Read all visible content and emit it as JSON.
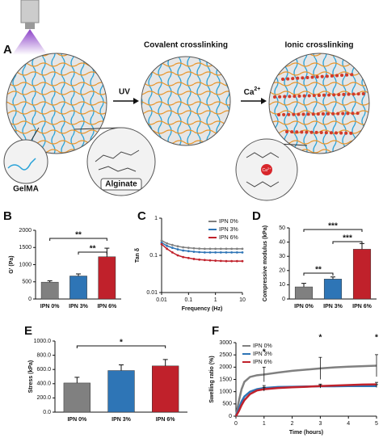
{
  "panel_a": {
    "label": "A",
    "title_covalent": "Covalent crosslinking",
    "title_ionic": "Ionic crosslinking",
    "uv": "UV",
    "ion": "Ca",
    "ion_charge": "2+",
    "gelma": "GelMA",
    "alginate": "Alginate"
  },
  "chart_data": [
    {
      "type": "bar",
      "panel_label": "B",
      "ylabel": "G' (Pa)",
      "categories": [
        "IPN 0%",
        "IPN 3%",
        "IPN 6%"
      ],
      "values": [
        490,
        670,
        1230
      ],
      "errors": [
        40,
        60,
        250
      ],
      "colors": [
        "#808080",
        "#2e75b6",
        "#c0212b"
      ],
      "ylim": [
        0,
        2000
      ],
      "yticks": [
        0,
        500,
        1000,
        1500,
        2000
      ],
      "annotations": [
        "**",
        "**"
      ]
    },
    {
      "type": "line",
      "panel_label": "C",
      "xlabel": "Frequency (Hz)",
      "ylabel": "Tan δ",
      "xscale": "log",
      "yscale": "log",
      "xlim": [
        0.01,
        10
      ],
      "xticks": [
        0.01,
        0.1,
        1,
        10
      ],
      "ylim": [
        0.01,
        1
      ],
      "yticks": [
        0.01,
        0.1,
        1
      ],
      "legend": "upper right",
      "x": [
        0.01,
        0.0158,
        0.0251,
        0.0398,
        0.0631,
        0.1,
        0.158,
        0.251,
        0.398,
        0.631,
        1,
        1.58,
        2.51,
        3.98,
        6.31,
        10
      ],
      "series": [
        {
          "name": "IPN 0%",
          "color": "#808080",
          "values": [
            0.25,
            0.21,
            0.19,
            0.175,
            0.165,
            0.16,
            0.155,
            0.152,
            0.15,
            0.15,
            0.15,
            0.15,
            0.15,
            0.15,
            0.15,
            0.15
          ]
        },
        {
          "name": "IPN 3%",
          "color": "#2e75b6",
          "values": [
            0.22,
            0.18,
            0.16,
            0.145,
            0.135,
            0.13,
            0.125,
            0.122,
            0.12,
            0.12,
            0.12,
            0.12,
            0.12,
            0.12,
            0.12,
            0.12
          ]
        },
        {
          "name": "IPN 6%",
          "color": "#c0212b",
          "values": [
            0.2,
            0.15,
            0.12,
            0.1,
            0.09,
            0.085,
            0.08,
            0.077,
            0.075,
            0.073,
            0.072,
            0.071,
            0.07,
            0.07,
            0.07,
            0.07
          ]
        }
      ]
    },
    {
      "type": "bar",
      "panel_label": "D",
      "ylabel": "Compressive modulus (kPa)",
      "categories": [
        "IPN 0%",
        "IPN 3%",
        "IPN 6%"
      ],
      "values": [
        8.5,
        14,
        35
      ],
      "errors": [
        2.5,
        1.5,
        4
      ],
      "colors": [
        "#808080",
        "#2e75b6",
        "#c0212b"
      ],
      "ylim": [
        0,
        50
      ],
      "yticks": [
        0,
        10,
        20,
        30,
        40,
        50
      ],
      "annotations": [
        "**",
        "***",
        "***"
      ]
    },
    {
      "type": "bar",
      "panel_label": "E",
      "ylabel": "Stress (kPa)",
      "categories": [
        "IPN 0%",
        "IPN 3%",
        "IPN 6%"
      ],
      "values": [
        410,
        585,
        650
      ],
      "errors": [
        80,
        80,
        90
      ],
      "colors": [
        "#808080",
        "#2e75b6",
        "#c0212b"
      ],
      "ylim": [
        0,
        1000
      ],
      "yticks": [
        {
          "value": 0,
          "label": "0.0"
        },
        {
          "value": 200,
          "label": "200.0"
        },
        {
          "value": 400,
          "label": "400.0"
        },
        {
          "value": 600,
          "label": "600.0"
        },
        {
          "value": 800,
          "label": "800.0"
        },
        {
          "value": 1000,
          "label": "1000.0"
        }
      ],
      "annotations": [
        "*"
      ]
    },
    {
      "type": "line",
      "panel_label": "F",
      "xlabel": "Time (hours)",
      "ylabel": "Swelling ratio (%)",
      "xlim": [
        0,
        5
      ],
      "xticks": [
        0,
        1,
        2,
        3,
        4,
        5
      ],
      "ylim": [
        0,
        3000
      ],
      "yticks": [
        0,
        500,
        1000,
        1500,
        2000,
        2500,
        3000
      ],
      "legend": "upper left",
      "x": [
        0,
        0.1,
        0.2,
        0.3,
        0.5,
        0.75,
        1,
        1.5,
        2,
        2.5,
        3,
        3.5,
        4,
        4.5,
        5
      ],
      "series": [
        {
          "name": "IPN 0%",
          "color": "#808080",
          "values": [
            0,
            600,
            1100,
            1400,
            1600,
            1670,
            1700,
            1780,
            1850,
            1900,
            1950,
            1990,
            2020,
            2040,
            2060
          ],
          "errors": [
            null,
            null,
            null,
            null,
            null,
            null,
            300,
            null,
            null,
            null,
            450,
            null,
            null,
            null,
            450
          ]
        },
        {
          "name": "IPN 3%",
          "color": "#2e75b6",
          "values": [
            0,
            300,
            600,
            800,
            1000,
            1100,
            1150,
            1190,
            1200,
            1210,
            1220,
            1220,
            1230,
            1230,
            1230
          ],
          "errors": [
            null,
            null,
            null,
            null,
            null,
            null,
            100,
            null,
            null,
            null,
            50,
            null,
            null,
            null,
            60
          ]
        },
        {
          "name": "IPN 6%",
          "color": "#c0212b",
          "values": [
            0,
            200,
            450,
            650,
            900,
            1050,
            1100,
            1150,
            1180,
            1200,
            1230,
            1250,
            1270,
            1290,
            1300
          ],
          "errors": [
            null,
            null,
            null,
            null,
            null,
            null,
            80,
            null,
            null,
            null,
            80,
            null,
            null,
            null,
            80
          ]
        }
      ],
      "annotations": [
        "*",
        "*",
        "*"
      ]
    }
  ]
}
